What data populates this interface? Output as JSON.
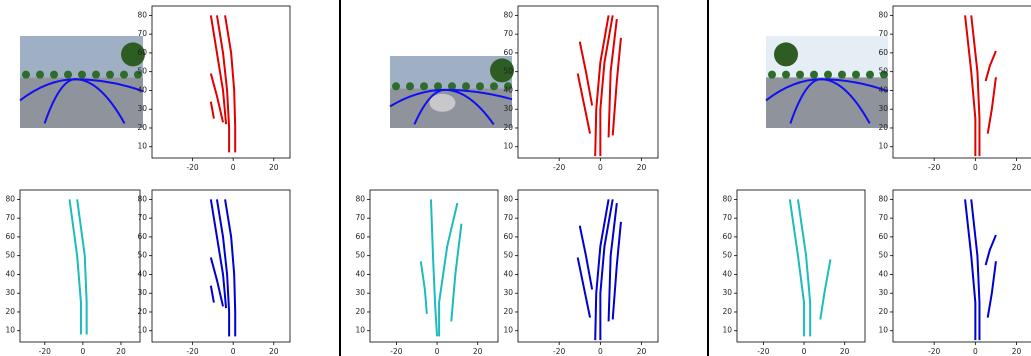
{
  "chart_data": [
    {
      "type": "line",
      "xlim": [
        -40,
        28
      ],
      "ylim": [
        4,
        85
      ],
      "xticks": [
        -20,
        0,
        20
      ],
      "yticks": [
        10,
        20,
        30,
        40,
        50,
        60,
        70,
        80
      ],
      "series": [
        {
          "color": "#e00000",
          "x": [
            -11,
            -8,
            -5,
            -3.5
          ],
          "values": [
            80,
            60,
            40,
            22
          ]
        },
        {
          "color": "#e00000",
          "x": [
            -8,
            -5,
            -3,
            -2,
            -2
          ],
          "values": [
            80,
            60,
            40,
            20,
            7
          ]
        },
        {
          "color": "#e00000",
          "x": [
            -4,
            -1,
            0.5,
            1,
            1
          ],
          "values": [
            80,
            60,
            40,
            20,
            7
          ]
        },
        {
          "color": "#e00000",
          "x": [
            -11,
            -8,
            -5
          ],
          "values": [
            49,
            37,
            23
          ]
        },
        {
          "color": "#e00000",
          "x": [
            -11,
            -9.5
          ],
          "values": [
            34,
            25
          ]
        }
      ]
    },
    {
      "type": "line",
      "xlim": [
        -33,
        30
      ],
      "ylim": [
        4,
        85
      ],
      "xticks": [
        -20,
        0,
        20
      ],
      "yticks": [
        10,
        20,
        30,
        40,
        50,
        60,
        70,
        80
      ],
      "series": [
        {
          "color": "#1cbcbc",
          "x": [
            -7,
            -3,
            -1,
            -1
          ],
          "values": [
            80,
            50,
            25,
            8
          ]
        },
        {
          "color": "#1cbcbc",
          "x": [
            -3,
            1,
            2,
            2
          ],
          "values": [
            80,
            50,
            25,
            8
          ]
        }
      ]
    },
    {
      "type": "line",
      "xlim": [
        -40,
        28
      ],
      "ylim": [
        4,
        85
      ],
      "xticks": [
        -20,
        0,
        20
      ],
      "yticks": [
        10,
        20,
        30,
        40,
        50,
        60,
        70,
        80
      ],
      "series": [
        {
          "color": "#0000d0",
          "x": [
            -11,
            -8,
            -5,
            -3.5
          ],
          "values": [
            80,
            60,
            40,
            22
          ]
        },
        {
          "color": "#0000d0",
          "x": [
            -8,
            -5,
            -3,
            -2,
            -2
          ],
          "values": [
            80,
            60,
            40,
            20,
            7
          ]
        },
        {
          "color": "#0000d0",
          "x": [
            -4,
            -1,
            0.5,
            1,
            1
          ],
          "values": [
            80,
            60,
            40,
            20,
            7
          ]
        },
        {
          "color": "#0000d0",
          "x": [
            -11,
            -8,
            -5
          ],
          "values": [
            49,
            37,
            23
          ]
        },
        {
          "color": "#0000d0",
          "x": [
            -11,
            -9.5
          ],
          "values": [
            34,
            25
          ]
        }
      ]
    },
    {
      "type": "line",
      "xlim": [
        -40,
        28
      ],
      "ylim": [
        4,
        85
      ],
      "xticks": [
        -20,
        0,
        20
      ],
      "yticks": [
        10,
        20,
        30,
        40,
        50,
        60,
        70,
        80
      ],
      "series": [
        {
          "color": "#e00000",
          "x": [
            -10,
            -7,
            -4
          ],
          "values": [
            66,
            50,
            32
          ]
        },
        {
          "color": "#e00000",
          "x": [
            -11,
            -8,
            -5
          ],
          "values": [
            49,
            33,
            17
          ]
        },
        {
          "color": "#e00000",
          "x": [
            4,
            0,
            -2,
            -2.5
          ],
          "values": [
            80,
            55,
            30,
            5
          ]
        },
        {
          "color": "#e00000",
          "x": [
            6,
            2,
            0,
            0
          ],
          "values": [
            80,
            55,
            30,
            5
          ]
        },
        {
          "color": "#e00000",
          "x": [
            8,
            5,
            4
          ],
          "values": [
            78,
            50,
            15
          ]
        },
        {
          "color": "#e00000",
          "x": [
            10,
            8,
            6
          ],
          "values": [
            68,
            45,
            16
          ]
        }
      ]
    },
    {
      "type": "line",
      "xlim": [
        -33,
        30
      ],
      "ylim": [
        4,
        85
      ],
      "xticks": [
        -20,
        0,
        20
      ],
      "yticks": [
        10,
        20,
        30,
        40,
        50,
        60,
        70,
        80
      ],
      "series": [
        {
          "color": "#1cbcbc",
          "x": [
            -8,
            -6,
            -5
          ],
          "values": [
            47,
            32,
            19
          ]
        },
        {
          "color": "#1cbcbc",
          "x": [
            -3,
            -2,
            -1,
            0
          ],
          "values": [
            80,
            50,
            25,
            7
          ]
        },
        {
          "color": "#1cbcbc",
          "x": [
            10,
            5,
            1,
            1
          ],
          "values": [
            78,
            55,
            25,
            7
          ]
        },
        {
          "color": "#1cbcbc",
          "x": [
            12,
            9,
            7
          ],
          "values": [
            67,
            40,
            15
          ]
        }
      ]
    },
    {
      "type": "line",
      "xlim": [
        -40,
        28
      ],
      "ylim": [
        4,
        85
      ],
      "xticks": [
        -20,
        0,
        20
      ],
      "yticks": [
        10,
        20,
        30,
        40,
        50,
        60,
        70,
        80
      ],
      "series": [
        {
          "color": "#0000d0",
          "x": [
            -10,
            -7,
            -4
          ],
          "values": [
            66,
            50,
            32
          ]
        },
        {
          "color": "#0000d0",
          "x": [
            -11,
            -8,
            -5
          ],
          "values": [
            49,
            33,
            17
          ]
        },
        {
          "color": "#0000d0",
          "x": [
            4,
            0,
            -2,
            -2.5
          ],
          "values": [
            80,
            55,
            30,
            5
          ]
        },
        {
          "color": "#0000d0",
          "x": [
            6,
            2,
            0,
            0
          ],
          "values": [
            80,
            55,
            30,
            5
          ]
        },
        {
          "color": "#0000d0",
          "x": [
            8,
            5,
            4
          ],
          "values": [
            78,
            50,
            15
          ]
        },
        {
          "color": "#0000d0",
          "x": [
            10,
            8,
            6
          ],
          "values": [
            68,
            45,
            16
          ]
        }
      ]
    },
    {
      "type": "line",
      "xlim": [
        -40,
        28
      ],
      "ylim": [
        4,
        85
      ],
      "xticks": [
        -20,
        0,
        20
      ],
      "yticks": [
        10,
        20,
        30,
        40,
        50,
        60,
        70,
        80
      ],
      "series": [
        {
          "color": "#e00000",
          "x": [
            -5,
            -2,
            0,
            0
          ],
          "values": [
            80,
            50,
            25,
            5
          ]
        },
        {
          "color": "#e00000",
          "x": [
            -2,
            1,
            2,
            2
          ],
          "values": [
            80,
            50,
            25,
            5
          ]
        },
        {
          "color": "#e00000",
          "x": [
            10,
            7,
            5
          ],
          "values": [
            61,
            53,
            45
          ]
        },
        {
          "color": "#e00000",
          "x": [
            10,
            8,
            6
          ],
          "values": [
            47,
            30,
            17
          ]
        }
      ]
    },
    {
      "type": "line",
      "xlim": [
        -33,
        30
      ],
      "ylim": [
        4,
        85
      ],
      "xticks": [
        -20,
        0,
        20
      ],
      "yticks": [
        10,
        20,
        30,
        40,
        50,
        60,
        70,
        80
      ],
      "series": [
        {
          "color": "#1cbcbc",
          "x": [
            -7,
            -3,
            0,
            0
          ],
          "values": [
            80,
            50,
            25,
            7
          ]
        },
        {
          "color": "#1cbcbc",
          "x": [
            -3,
            1,
            3,
            3
          ],
          "values": [
            80,
            50,
            25,
            7
          ]
        },
        {
          "color": "#1cbcbc",
          "x": [
            13,
            10,
            8
          ],
          "values": [
            48,
            30,
            16
          ]
        }
      ]
    },
    {
      "type": "line",
      "xlim": [
        -40,
        28
      ],
      "ylim": [
        4,
        85
      ],
      "xticks": [
        -20,
        0,
        20
      ],
      "yticks": [
        10,
        20,
        30,
        40,
        50,
        60,
        70,
        80
      ],
      "series": [
        {
          "color": "#0000d0",
          "x": [
            -5,
            -2,
            0,
            0
          ],
          "values": [
            80,
            50,
            25,
            5
          ]
        },
        {
          "color": "#0000d0",
          "x": [
            -2,
            1,
            2,
            2
          ],
          "values": [
            80,
            50,
            25,
            5
          ]
        },
        {
          "color": "#0000d0",
          "x": [
            10,
            7,
            5
          ],
          "values": [
            61,
            53,
            45
          ]
        },
        {
          "color": "#0000d0",
          "x": [
            10,
            8,
            6
          ],
          "values": [
            47,
            30,
            17
          ]
        }
      ]
    }
  ]
}
